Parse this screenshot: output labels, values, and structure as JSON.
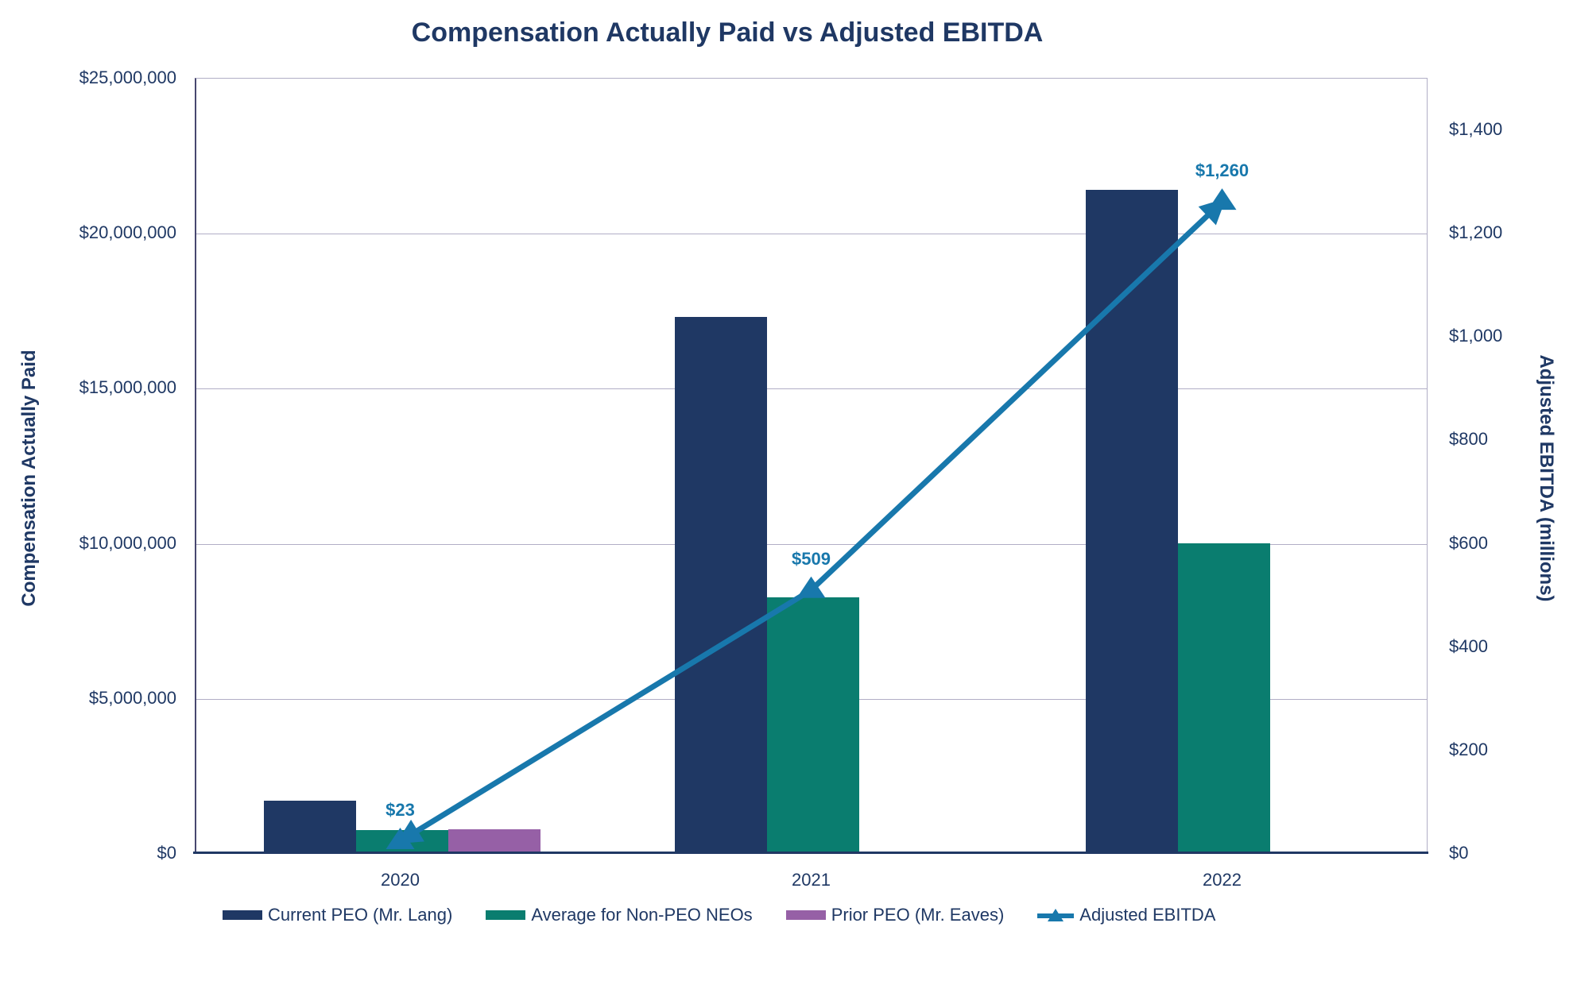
{
  "chart_data": {
    "type": "combo-bar-line",
    "title": "Compensation Actually Paid vs Adjusted EBITDA",
    "categories": [
      "2020",
      "2021",
      "2022"
    ],
    "bar_series": [
      {
        "key": "current-peo",
        "name": "Current PEO (Mr. Lang)",
        "color": "#1F3864",
        "values": [
          1700000,
          17300000,
          21400000
        ]
      },
      {
        "key": "non-peo-neos",
        "name": "Average for Non-PEO NEOs",
        "color": "#0A7D6F",
        "values": [
          750000,
          8250000,
          10000000
        ]
      },
      {
        "key": "prior-peo",
        "name": "Prior PEO (Mr. Eaves)",
        "color": "#9660A6",
        "values": [
          780000,
          0,
          0
        ]
      }
    ],
    "line_series": {
      "key": "adjusted-ebitda",
      "name": "Adjusted EBITDA",
      "color": "#1878AC",
      "axis": "right",
      "values": [
        23,
        509,
        1260
      ],
      "point_labels": [
        "$23",
        "$509",
        "$1,260"
      ],
      "marker": "triangle-up",
      "line_ends": "arrows"
    },
    "left_axis": {
      "title": "Compensation Actually Paid",
      "min": 0,
      "max": 25000000,
      "tick_values": [
        0,
        5000000,
        10000000,
        15000000,
        20000000,
        25000000
      ],
      "tick_labels": [
        "$0",
        "$5,000,000",
        "$10,000,000",
        "$15,000,000",
        "$20,000,000",
        "$25,000,000"
      ]
    },
    "right_axis": {
      "title": "Adjusted EBITDA (millions)",
      "min": 0,
      "max": 1500,
      "tick_values": [
        0,
        200,
        400,
        600,
        800,
        1000,
        1200,
        1400
      ],
      "tick_labels": [
        "$0",
        "$200",
        "$400",
        "$600",
        "$800",
        "$1,000",
        "$1,200",
        "$1,400"
      ]
    },
    "legend": [
      {
        "label": "Current PEO (Mr. Lang)",
        "swatch": "bar",
        "color": "#1F3864"
      },
      {
        "label": "Average for Non-PEO NEOs",
        "swatch": "bar",
        "color": "#0A7D6F"
      },
      {
        "label": "Prior PEO (Mr. Eaves)",
        "swatch": "bar",
        "color": "#9660A6"
      },
      {
        "label": "Adjusted EBITDA",
        "swatch": "line-triangle",
        "color": "#1878AC"
      }
    ],
    "legend_position": "bottom",
    "grid": true,
    "colors": {
      "title_text": "#1F3864",
      "axis_text": "#1F3864",
      "gridline": "#B1AEC6",
      "x_axis_line": "#203864"
    }
  }
}
